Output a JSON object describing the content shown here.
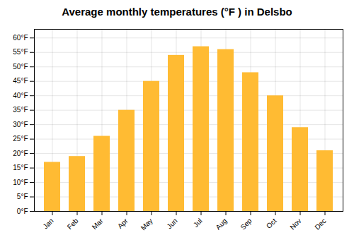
{
  "chart_data": {
    "type": "bar",
    "title": "Average monthly temperatures (°F ) in Delsbo",
    "categories": [
      "Jan",
      "Feb",
      "Mar",
      "Apr",
      "May",
      "Jun",
      "Jul",
      "Aug",
      "Sep",
      "Oct",
      "Nov",
      "Dec"
    ],
    "values": [
      17,
      19,
      26,
      35,
      45,
      54,
      57,
      56,
      48,
      40,
      29,
      21
    ],
    "color": "#FFBB33",
    "ylim": [
      0,
      63
    ],
    "yticks": [
      {
        "value": 0,
        "label": "0°F"
      },
      {
        "value": 5,
        "label": "5°F"
      },
      {
        "value": 10,
        "label": "10°F"
      },
      {
        "value": 15,
        "label": "15°F"
      },
      {
        "value": 20,
        "label": "20°F"
      },
      {
        "value": 25,
        "label": "25°F"
      },
      {
        "value": 30,
        "label": "30°F"
      },
      {
        "value": 35,
        "label": "35°F"
      },
      {
        "value": 40,
        "label": "40°F"
      },
      {
        "value": 45,
        "label": "45°F"
      },
      {
        "value": 50,
        "label": "50°F"
      },
      {
        "value": 55,
        "label": "55°F"
      },
      {
        "value": 60,
        "label": "60°F"
      }
    ],
    "grid": true
  }
}
